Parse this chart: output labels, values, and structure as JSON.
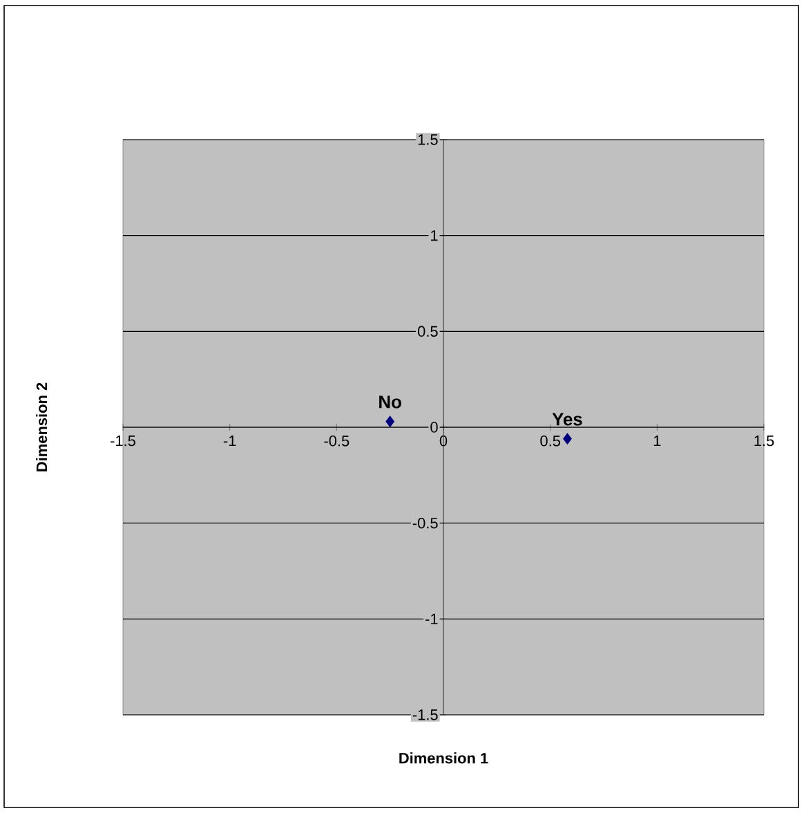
{
  "chart_data": {
    "type": "scatter",
    "xlabel": "Dimension 1",
    "ylabel": "Dimension 2",
    "series": [
      {
        "color": "#000080",
        "x": [
          -0.25,
          0.58
        ],
        "values": [
          0.03,
          -0.06
        ]
      }
    ],
    "annotations": [
      {
        "text": "No",
        "x": -0.25,
        "y": 0.03
      },
      {
        "text": "Yes",
        "x": 0.58,
        "y": -0.06
      }
    ],
    "xlim": [
      -1.5,
      1.5
    ],
    "ylim": [
      -1.5,
      1.5
    ],
    "xticks": [
      -1.5,
      -1,
      -0.5,
      0,
      0.5,
      1,
      1.5
    ],
    "yticks": [
      -1.5,
      -1,
      -0.5,
      0,
      0.5,
      1,
      1.5
    ],
    "grid": "y",
    "marker": "diamond"
  }
}
